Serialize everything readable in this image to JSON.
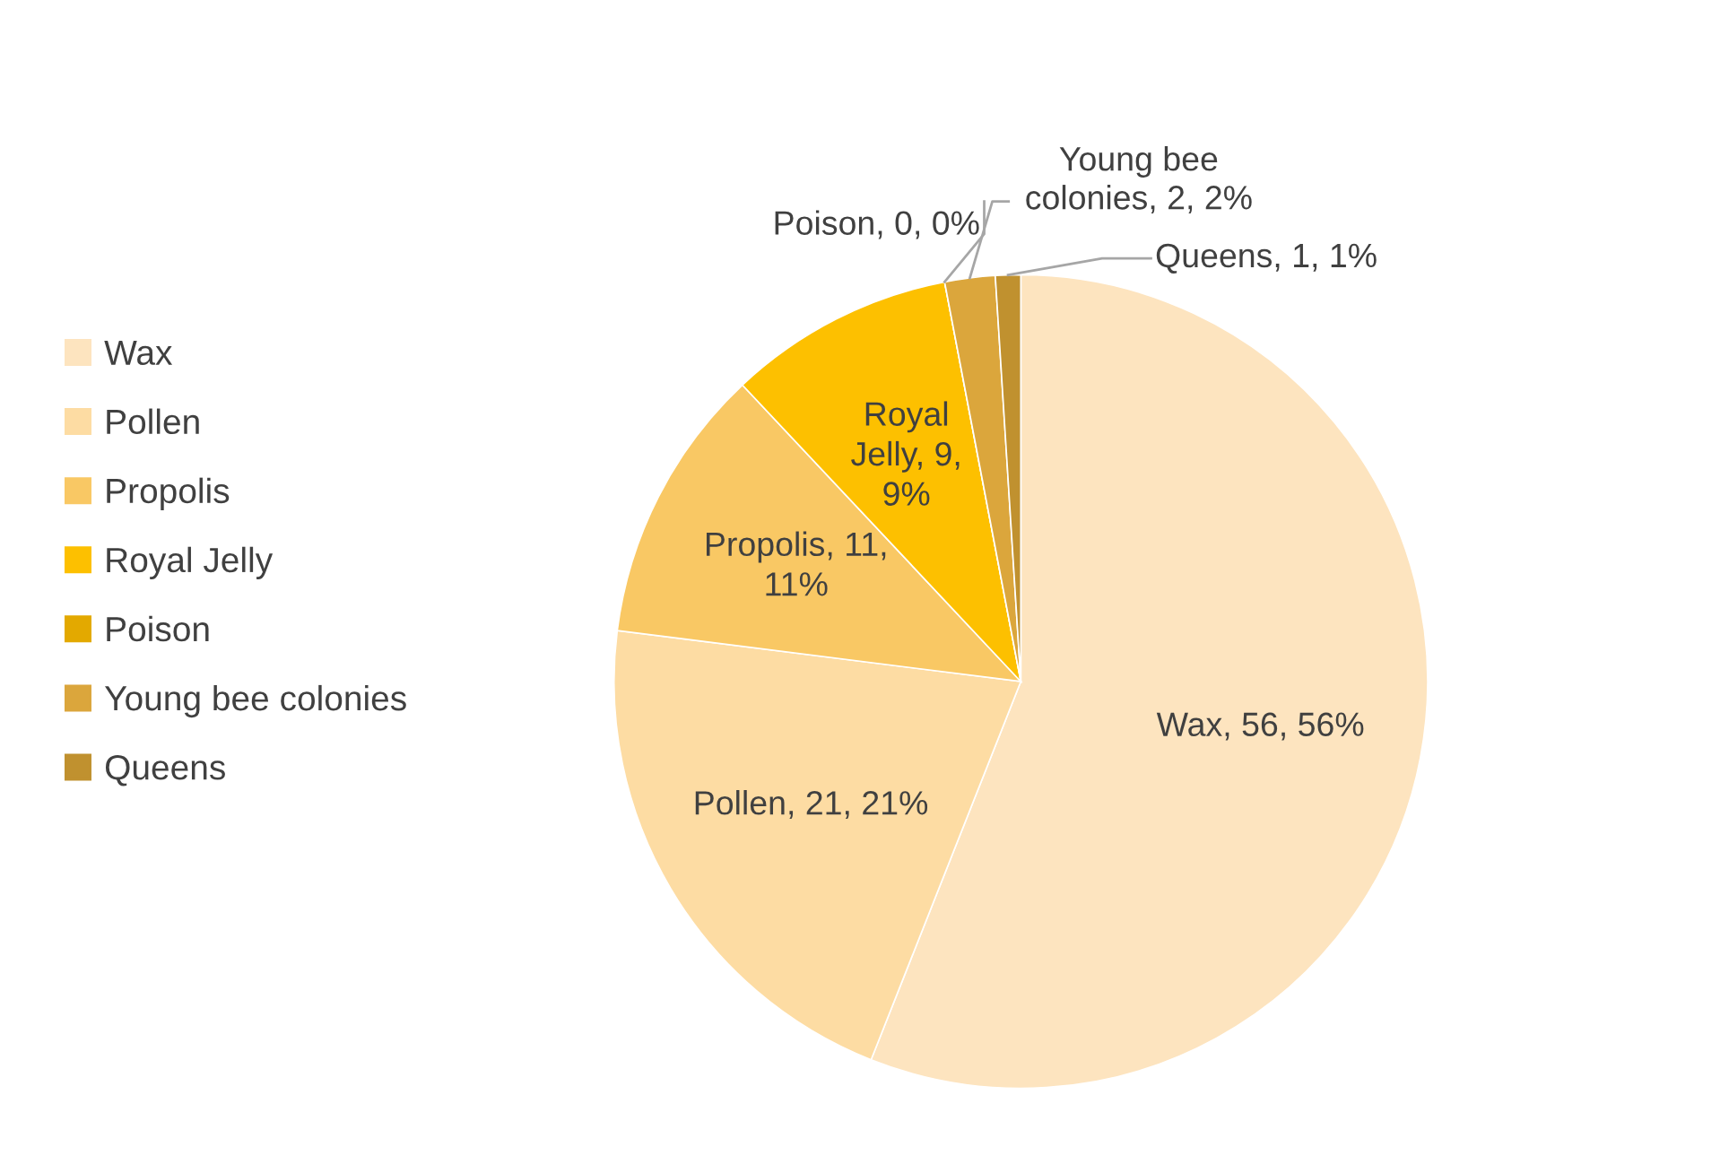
{
  "chart_data": {
    "type": "pie",
    "categories": [
      "Wax",
      "Pollen",
      "Propolis",
      "Royal Jelly",
      "Poison",
      "Young bee colonies",
      "Queens"
    ],
    "values": [
      56,
      21,
      11,
      9,
      0,
      2,
      1
    ],
    "colors": [
      "#fde4bf",
      "#fddca3",
      "#f9c864",
      "#fdc000",
      "#e3a900",
      "#dba63c",
      "#c0912f"
    ],
    "value_labels": [
      "Wax, 56, 56%",
      "Pollen, 21, 21%",
      "Propolis, 11, 11%",
      "Royal Jelly, 9, 9%",
      "Poison, 0, 0%",
      "Young bee colonies, 2, 2%",
      "Queens, 1, 1%"
    ],
    "legend": "left"
  }
}
